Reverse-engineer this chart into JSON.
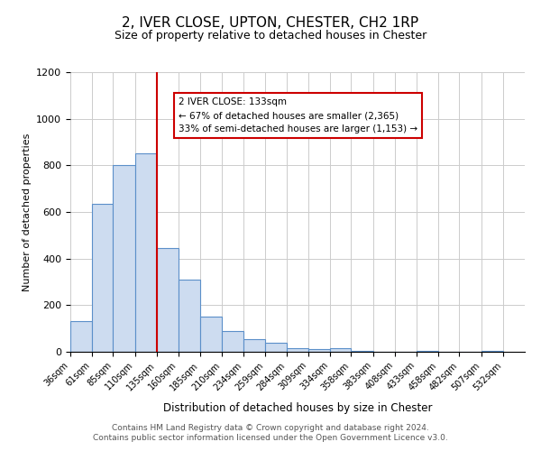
{
  "title": "2, IVER CLOSE, UPTON, CHESTER, CH2 1RP",
  "subtitle": "Size of property relative to detached houses in Chester",
  "xlabel": "Distribution of detached houses by size in Chester",
  "ylabel": "Number of detached properties",
  "bar_values": [
    130,
    635,
    800,
    850,
    445,
    310,
    150,
    90,
    55,
    40,
    15,
    10,
    15,
    5,
    0,
    0,
    5,
    0,
    0,
    5
  ],
  "bin_labels": [
    "36sqm",
    "61sqm",
    "85sqm",
    "110sqm",
    "135sqm",
    "160sqm",
    "185sqm",
    "210sqm",
    "234sqm",
    "259sqm",
    "284sqm",
    "309sqm",
    "334sqm",
    "358sqm",
    "383sqm",
    "408sqm",
    "433sqm",
    "458sqm",
    "482sqm",
    "507sqm",
    "532sqm"
  ],
  "bar_color": "#cddcf0",
  "bar_edge_color": "#5b8fc9",
  "vline_color": "#cc0000",
  "vline_x": 135,
  "annotation_title": "2 IVER CLOSE: 133sqm",
  "annotation_line1": "← 67% of detached houses are smaller (2,365)",
  "annotation_line2": "33% of semi-detached houses are larger (1,153) →",
  "annotation_box_color": "#ffffff",
  "annotation_box_edge": "#cc0000",
  "ylim": [
    0,
    1200
  ],
  "yticks": [
    0,
    200,
    400,
    600,
    800,
    1000,
    1200
  ],
  "grid_color": "#cccccc",
  "background_color": "#ffffff",
  "footer_line1": "Contains HM Land Registry data © Crown copyright and database right 2024.",
  "footer_line2": "Contains public sector information licensed under the Open Government Licence v3.0.",
  "bin_edges": [
    36,
    61,
    85,
    110,
    135,
    160,
    185,
    210,
    234,
    259,
    284,
    309,
    334,
    358,
    383,
    408,
    433,
    458,
    482,
    507,
    532,
    557
  ]
}
